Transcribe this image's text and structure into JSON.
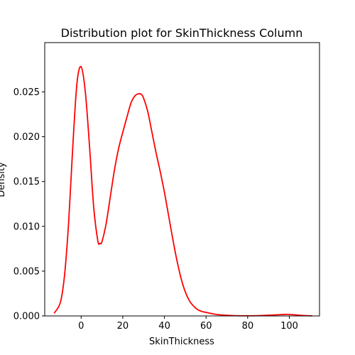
{
  "chart_data": {
    "type": "line",
    "title": "Distribution plot for SkinThickness Column",
    "xlabel": "SkinThickness",
    "ylabel": "Density",
    "xlim": [
      -17.5,
      114.5
    ],
    "ylim": [
      0,
      0.0305
    ],
    "x_ticks": [
      0,
      20,
      40,
      60,
      80,
      100
    ],
    "y_ticks": [
      0.0,
      0.005,
      0.01,
      0.015,
      0.02,
      0.025
    ],
    "y_tick_labels": [
      "0.000",
      "0.005",
      "0.010",
      "0.015",
      "0.020",
      "0.025"
    ],
    "grid": false,
    "series": [
      {
        "color": "#ff0000",
        "x": [
          -13,
          -10,
          -8,
          -6,
          -4,
          -2,
          0,
          2,
          4,
          6,
          8,
          9,
          10,
          12,
          14,
          16,
          18,
          20,
          22,
          24,
          26,
          28,
          29,
          30,
          32,
          34,
          36,
          38,
          40,
          42,
          44,
          46,
          48,
          50,
          52,
          54,
          56,
          58,
          60,
          64,
          68,
          72,
          76,
          80,
          84,
          88,
          92,
          96,
          99,
          102,
          106,
          111
        ],
        "y": [
          0.0003,
          0.0015,
          0.0045,
          0.0105,
          0.019,
          0.026,
          0.0278,
          0.025,
          0.019,
          0.0122,
          0.0084,
          0.0081,
          0.0083,
          0.0103,
          0.0133,
          0.0163,
          0.0187,
          0.0205,
          0.0222,
          0.0238,
          0.0246,
          0.0248,
          0.0247,
          0.0243,
          0.0228,
          0.0205,
          0.0182,
          0.0161,
          0.0138,
          0.0112,
          0.0086,
          0.0062,
          0.0042,
          0.0027,
          0.0017,
          0.0011,
          0.0007,
          0.0005,
          0.0004,
          0.0002,
          0.0001,
          5e-05,
          2e-05,
          2e-05,
          3e-05,
          6e-05,
          0.0001,
          0.00015,
          0.00018,
          0.00014,
          6e-05,
          1e-05
        ]
      }
    ]
  }
}
